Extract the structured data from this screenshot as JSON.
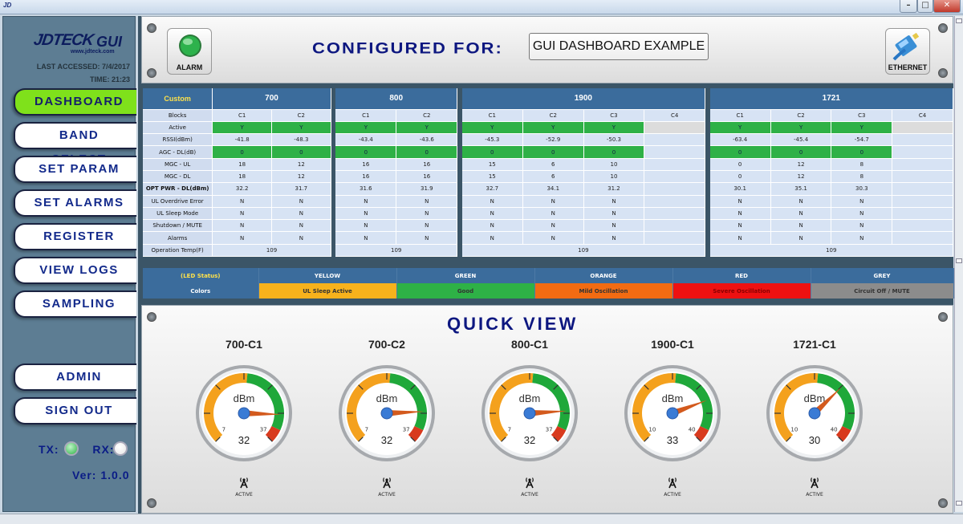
{
  "app": {
    "icon_text": "JD"
  },
  "sidebar": {
    "logo_main": "JDTECK",
    "logo_gui": "GUI",
    "logo_url": "www.jdteck.com",
    "last_accessed": "LAST ACCESSED: 7/4/2017",
    "time": "TIME: 21:23",
    "nav": [
      {
        "label": "DASHBOARD",
        "active": true
      },
      {
        "label": "BAND SELECT"
      },
      {
        "label": "SET PARAM"
      },
      {
        "label": "SET ALARMS"
      },
      {
        "label": "REGISTER"
      },
      {
        "label": "VIEW LOGS"
      },
      {
        "label": "SAMPLING"
      },
      {
        "label": "ADMIN"
      },
      {
        "label": "SIGN OUT"
      }
    ],
    "tx_label": "TX:",
    "rx_label": "RX:",
    "tx_color": "#2eb146",
    "rx_color": "#e6e6e6",
    "version": "Ver: 1.0.0"
  },
  "header": {
    "alarm_label": "ALARM",
    "alarm_color": "#2db24c",
    "configured_label": "CONFIGURED FOR:",
    "configured_value": "GUI DASHBOARD EXAMPLE",
    "ethernet_label": "ETHERNET"
  },
  "table": {
    "custom_label": "Custom",
    "bands": [
      "700",
      "800",
      "1900",
      "1721"
    ],
    "sub_700": [
      "C1",
      "C2"
    ],
    "sub_800": [
      "C1",
      "C2"
    ],
    "sub_1900": [
      "C1",
      "C2",
      "C3",
      "C4"
    ],
    "sub_1721": [
      "C1",
      "C2",
      "C3",
      "C4"
    ],
    "row_labels": [
      "Blocks",
      "Active",
      "RSSI(dBm)",
      "AGC - DL(dB)",
      "MGC - UL",
      "MGC - DL",
      "OPT PWR - DL(dBm)",
      "UL Overdrive Error",
      "UL Sleep Mode",
      "Shutdown / MUTE",
      "Alarms",
      "Operation Temp(F)"
    ],
    "active": [
      [
        "Y",
        "Y"
      ],
      [
        "Y",
        "Y"
      ],
      [
        "Y",
        "Y",
        "Y",
        ""
      ],
      [
        "Y",
        "Y",
        "Y",
        ""
      ]
    ],
    "rssi": [
      [
        "-41.8",
        "-48.3"
      ],
      [
        "-43.4",
        "-43.6"
      ],
      [
        "-45.3",
        "-52.9",
        "-50.3",
        ""
      ],
      [
        "-63.4",
        "-45.4",
        "-54.7",
        ""
      ]
    ],
    "agc": [
      [
        "0",
        "0"
      ],
      [
        "0",
        "0"
      ],
      [
        "0",
        "0",
        "0",
        ""
      ],
      [
        "0",
        "0",
        "0",
        ""
      ]
    ],
    "mgc_ul": [
      [
        "18",
        "12"
      ],
      [
        "16",
        "16"
      ],
      [
        "15",
        "6",
        "10",
        ""
      ],
      [
        "0",
        "12",
        "8",
        ""
      ]
    ],
    "mgc_dl": [
      [
        "18",
        "12"
      ],
      [
        "16",
        "16"
      ],
      [
        "15",
        "6",
        "10",
        ""
      ],
      [
        "0",
        "12",
        "8",
        ""
      ]
    ],
    "opt_pwr": [
      [
        "32.2",
        "31.7"
      ],
      [
        "31.6",
        "31.9"
      ],
      [
        "32.7",
        "34.1",
        "31.2",
        ""
      ],
      [
        "30.1",
        "35.1",
        "30.3",
        ""
      ]
    ],
    "overdrive": [
      [
        "N",
        "N"
      ],
      [
        "N",
        "N"
      ],
      [
        "N",
        "N",
        "N",
        ""
      ],
      [
        "N",
        "N",
        "N",
        ""
      ]
    ],
    "sleep": [
      [
        "N",
        "N"
      ],
      [
        "N",
        "N"
      ],
      [
        "N",
        "N",
        "N",
        ""
      ],
      [
        "N",
        "N",
        "N",
        ""
      ]
    ],
    "shutdown": [
      [
        "N",
        "N"
      ],
      [
        "N",
        "N"
      ],
      [
        "N",
        "N",
        "N",
        ""
      ],
      [
        "N",
        "N",
        "N",
        ""
      ]
    ],
    "alarms": [
      [
        "N",
        "N"
      ],
      [
        "N",
        "N"
      ],
      [
        "N",
        "N",
        "N",
        ""
      ],
      [
        "N",
        "N",
        "N",
        ""
      ]
    ],
    "temp": [
      "109",
      "109",
      "109",
      "109"
    ]
  },
  "legend": {
    "status_label": "(LED Status)",
    "colors_label": "Colors",
    "names": [
      "YELLOW",
      "GREEN",
      "ORANGE",
      "RED",
      "GREY"
    ],
    "meanings": [
      "UL Sleep Active",
      "Good",
      "Mild Oscillation",
      "Severe Oscillation",
      "Circuit Off / MUTE"
    ],
    "swatches": [
      "#f7b21c",
      "#2eb146",
      "#f26b12",
      "#ee1111",
      "#8c8c8c"
    ]
  },
  "quick_view": {
    "title": "QUICK VIEW",
    "unit": "dBm",
    "active_label": "ACTIVE",
    "gauges": [
      {
        "name": "700-C1",
        "value": 32,
        "min": 7,
        "max": 37,
        "needle": 32.2
      },
      {
        "name": "700-C2",
        "value": 32,
        "min": 7,
        "max": 37,
        "needle": 31.7
      },
      {
        "name": "800-C1",
        "value": 32,
        "min": 7,
        "max": 37,
        "needle": 31.6
      },
      {
        "name": "1900-C1",
        "value": 33,
        "min": 10,
        "max": 40,
        "needle": 32.7
      },
      {
        "name": "1721-C1",
        "value": 30,
        "min": 10,
        "max": 40,
        "needle": 30.1
      }
    ]
  }
}
